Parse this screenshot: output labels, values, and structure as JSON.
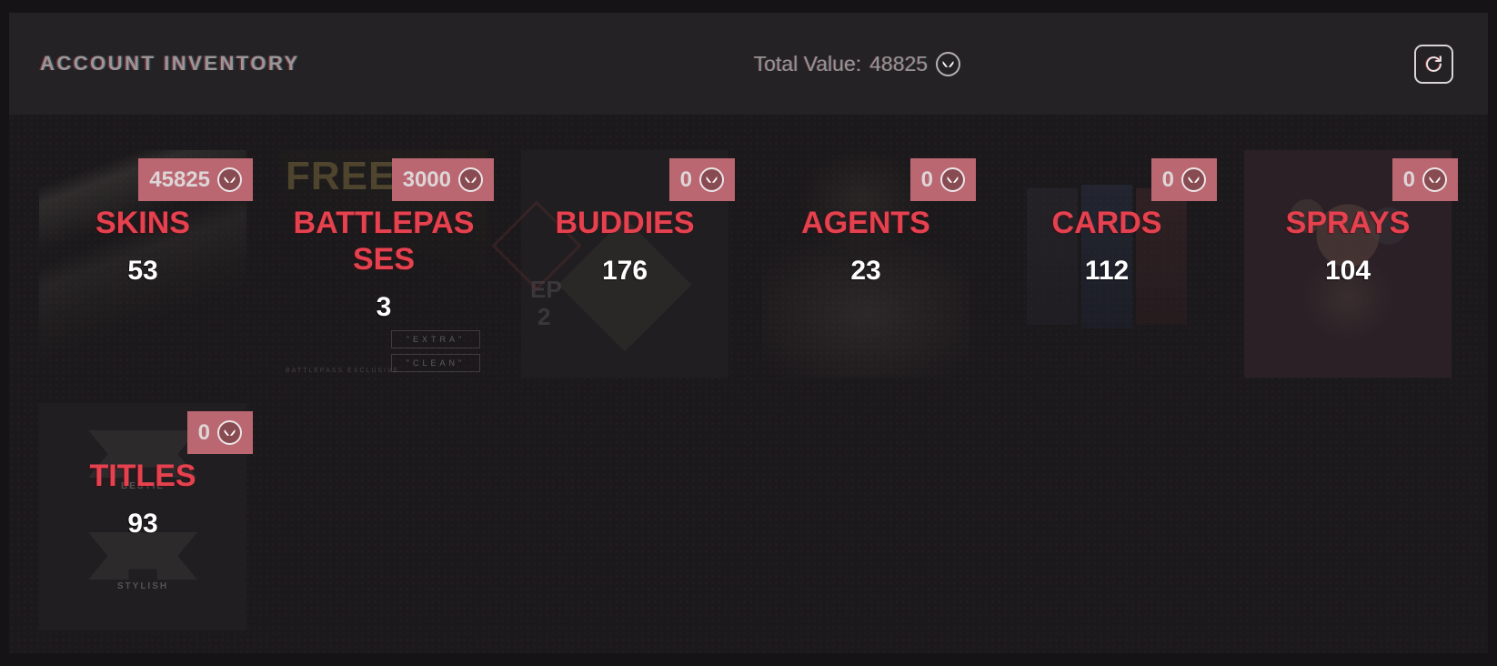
{
  "header": {
    "title": "ACCOUNT INVENTORY",
    "total_value_label": "Total Value:",
    "total_value": "48825",
    "currency_icon": "valorant-points-icon",
    "refresh_icon": "refresh-icon"
  },
  "colors": {
    "accent_red": "#e5414f",
    "badge_bg": "#bb6771",
    "page_bg": "#1b191b",
    "header_bg": "#242224",
    "card_bg": "#201e20",
    "muted_text": "#979395",
    "count_text": "#ffffff"
  },
  "cards": [
    {
      "title": "SKINS",
      "count": "53",
      "value": "45825",
      "art": "weapon",
      "art_texts": []
    },
    {
      "title": "BATTLEPASSES",
      "count": "3",
      "value": "3000",
      "art": "battlepass",
      "art_texts": [
        {
          "text": "FREE",
          "class": "bp-free"
        },
        {
          "text": "\"EXTRA\"",
          "class": "bp-extra"
        },
        {
          "text": "\"CLEAN\"",
          "class": "bp-clean"
        },
        {
          "text": "BATTLEPASS EXCLUSIVE",
          "class": "bp-micro"
        }
      ]
    },
    {
      "title": "BUDDIES",
      "count": "176",
      "value": "0",
      "art": "buddies",
      "art_texts": [
        {
          "text": "EP",
          "class": "bud-ep"
        },
        {
          "text": "2",
          "class": "bud-2"
        }
      ]
    },
    {
      "title": "AGENTS",
      "count": "23",
      "value": "0",
      "art": "agents",
      "art_texts": []
    },
    {
      "title": "CARDS",
      "count": "112",
      "value": "0",
      "art": "cards",
      "art_texts": []
    },
    {
      "title": "SPRAYS",
      "count": "104",
      "value": "0",
      "art": "sprays",
      "art_texts": []
    },
    {
      "title": "TITLES",
      "count": "93",
      "value": "0",
      "art": "titles",
      "art_texts": [
        {
          "text": "BESTIE",
          "class": "ttl-top-label"
        },
        {
          "text": "STYLISH",
          "class": "ttl-bottom-label"
        }
      ]
    }
  ]
}
